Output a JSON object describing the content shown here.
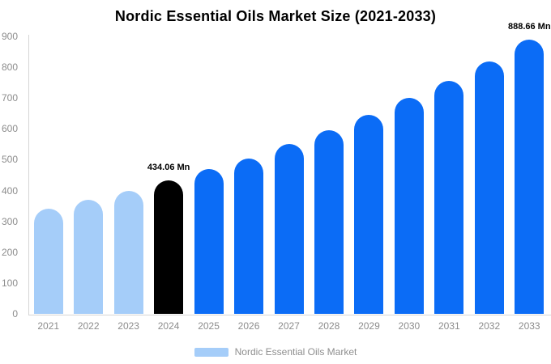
{
  "chart_data": {
    "type": "bar",
    "title": "Nordic Essential Oils Market Size (2021-2033)",
    "categories": [
      "2021",
      "2022",
      "2023",
      "2024",
      "2025",
      "2026",
      "2027",
      "2028",
      "2029",
      "2030",
      "2031",
      "2032",
      "2033"
    ],
    "series": [
      {
        "name": "Nordic Essential Oils Market",
        "values": [
          340,
          370,
          400,
          434.06,
          470,
          505,
          550,
          595,
          645,
          700,
          755,
          820,
          888.66
        ]
      }
    ],
    "bar_colors": [
      "#a5cdf9",
      "#a5cdf9",
      "#a5cdf9",
      "#000000",
      "#0b6cf6",
      "#0b6cf6",
      "#0b6cf6",
      "#0b6cf6",
      "#0b6cf6",
      "#0b6cf6",
      "#0b6cf6",
      "#0b6cf6",
      "#0b6cf6"
    ],
    "annotations": [
      {
        "index": 3,
        "text": "434.06 Mn"
      },
      {
        "index": 12,
        "text": "888.66 Mn"
      }
    ],
    "xlabel": "",
    "ylabel": "",
    "y_axis": {
      "min": 0,
      "max": 900,
      "tick_step": 100,
      "ticks": [
        0,
        100,
        200,
        300,
        400,
        500,
        600,
        700,
        800,
        900
      ]
    },
    "grid": false,
    "legend": {
      "label": "Nordic Essential Oils Market",
      "swatch_color": "#a5cdf9",
      "position": "bottom-center"
    },
    "colors": {
      "accent_blue": "#0b6cf6",
      "light_blue": "#a5cdf9",
      "highlight_black": "#000000",
      "axis_line": "#d6d6d6",
      "tick_text": "#8c8c8c",
      "legend_text": "#8e8e8e",
      "title_text": "#000000",
      "background": "#ffffff"
    }
  }
}
